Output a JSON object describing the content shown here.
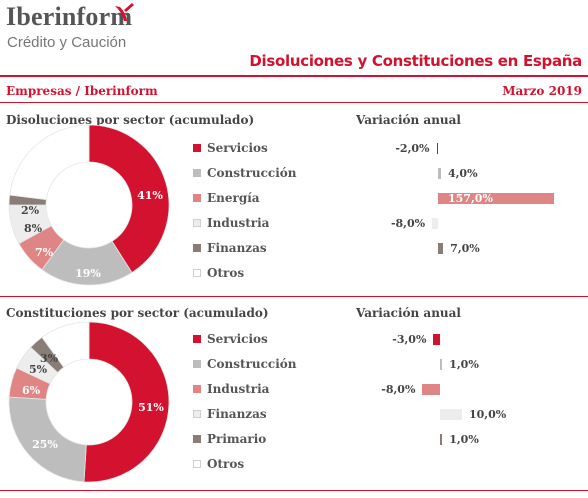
{
  "brand": {
    "name": "Iberinform",
    "subtitle": "Crédito y Caución"
  },
  "title": "Disoluciones y Constituciones en España",
  "left_subtitle": "Empresas / Iberinform",
  "right_subtitle": "Marzo 2019",
  "colors": {
    "accent": "#d2122e"
  },
  "chart_data": [
    {
      "type": "pie",
      "title": "Disoluciones por sector (acumulado)",
      "categories": [
        "Servicios",
        "Construcción",
        "Energía",
        "Industria",
        "Finanzas",
        "Otros"
      ],
      "values": [
        41,
        19,
        7,
        8,
        2,
        23
      ],
      "labels": [
        "41%",
        "19%",
        "7%",
        "8%",
        "2%",
        ""
      ],
      "colors": [
        "#d2122e",
        "#bdbdbd",
        "#e08585",
        "#ededed",
        "#8a7c77",
        "#ffffff"
      ],
      "donut": true
    },
    {
      "type": "bar",
      "title": "Variación anual",
      "categories": [
        "Servicios",
        "Construcción",
        "Energía",
        "Industria",
        "Finanzas"
      ],
      "values": [
        -2.0,
        4.0,
        157.0,
        -8.0,
        7.0
      ],
      "labels": [
        "-2,0%",
        "4,0%",
        "157,0%",
        "-8,0%",
        "7,0%"
      ],
      "colors": [
        "#d2122e",
        "#bdbdbd",
        "#e08585",
        "#ededed",
        "#8a7c77"
      ]
    },
    {
      "type": "pie",
      "title": "Constituciones por sector (acumulado)",
      "categories": [
        "Servicios",
        "Construcción",
        "Industria",
        "Finanzas",
        "Primario",
        "Otros"
      ],
      "values": [
        51,
        25,
        6,
        5,
        3,
        10
      ],
      "labels": [
        "51%",
        "25%",
        "6%",
        "5%",
        "3%",
        ""
      ],
      "colors": [
        "#d2122e",
        "#bdbdbd",
        "#e08585",
        "#ededed",
        "#8a7c77",
        "#ffffff"
      ],
      "donut": true
    },
    {
      "type": "bar",
      "title": "Variación anual",
      "categories": [
        "Servicios",
        "Construcción",
        "Industria",
        "Finanzas",
        "Primario"
      ],
      "values": [
        -3.0,
        1.0,
        -8.0,
        10.0,
        1.0
      ],
      "labels": [
        "-3,0%",
        "1,0%",
        "-8,0%",
        "10,0%",
        "1,0%"
      ],
      "colors": [
        "#d2122e",
        "#bdbdbd",
        "#e08585",
        "#ededed",
        "#8a7c77"
      ]
    }
  ]
}
